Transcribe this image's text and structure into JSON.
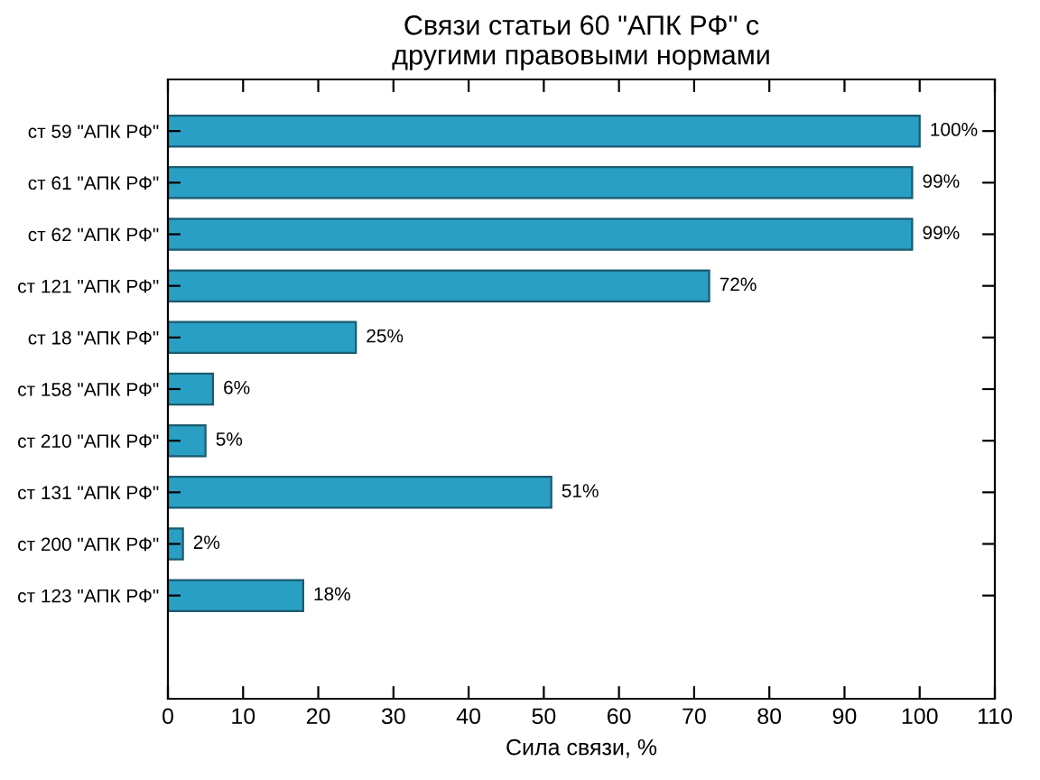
{
  "chart_data": {
    "type": "bar",
    "orientation": "horizontal",
    "title": "Связи статьи 60 \"АПК РФ\" с\nдругими правовыми нормами",
    "xlabel": "Сила связи, %",
    "categories": [
      "ст 59 \"АПК РФ\"",
      "ст 61 \"АПК РФ\"",
      "ст 62 \"АПК РФ\"",
      "ст 121 \"АПК РФ\"",
      "ст 18 \"АПК РФ\"",
      "ст 158 \"АПК РФ\"",
      "ст 210 \"АПК РФ\"",
      "ст 131 \"АПК РФ\"",
      "ст 200 \"АПК РФ\"",
      "ст 123 \"АПК РФ\""
    ],
    "values": [
      100,
      99,
      99,
      72,
      25,
      6,
      5,
      51,
      2,
      18
    ],
    "value_labels": [
      "100%",
      "99%",
      "99%",
      "72%",
      "25%",
      "6%",
      "5%",
      "51%",
      "2%",
      "18%"
    ],
    "color": "#2a9fc4",
    "xlim": [
      0,
      110
    ],
    "xticks": [
      0,
      10,
      20,
      30,
      40,
      50,
      60,
      70,
      80,
      90,
      100,
      110
    ],
    "grid": false,
    "legend": false
  }
}
